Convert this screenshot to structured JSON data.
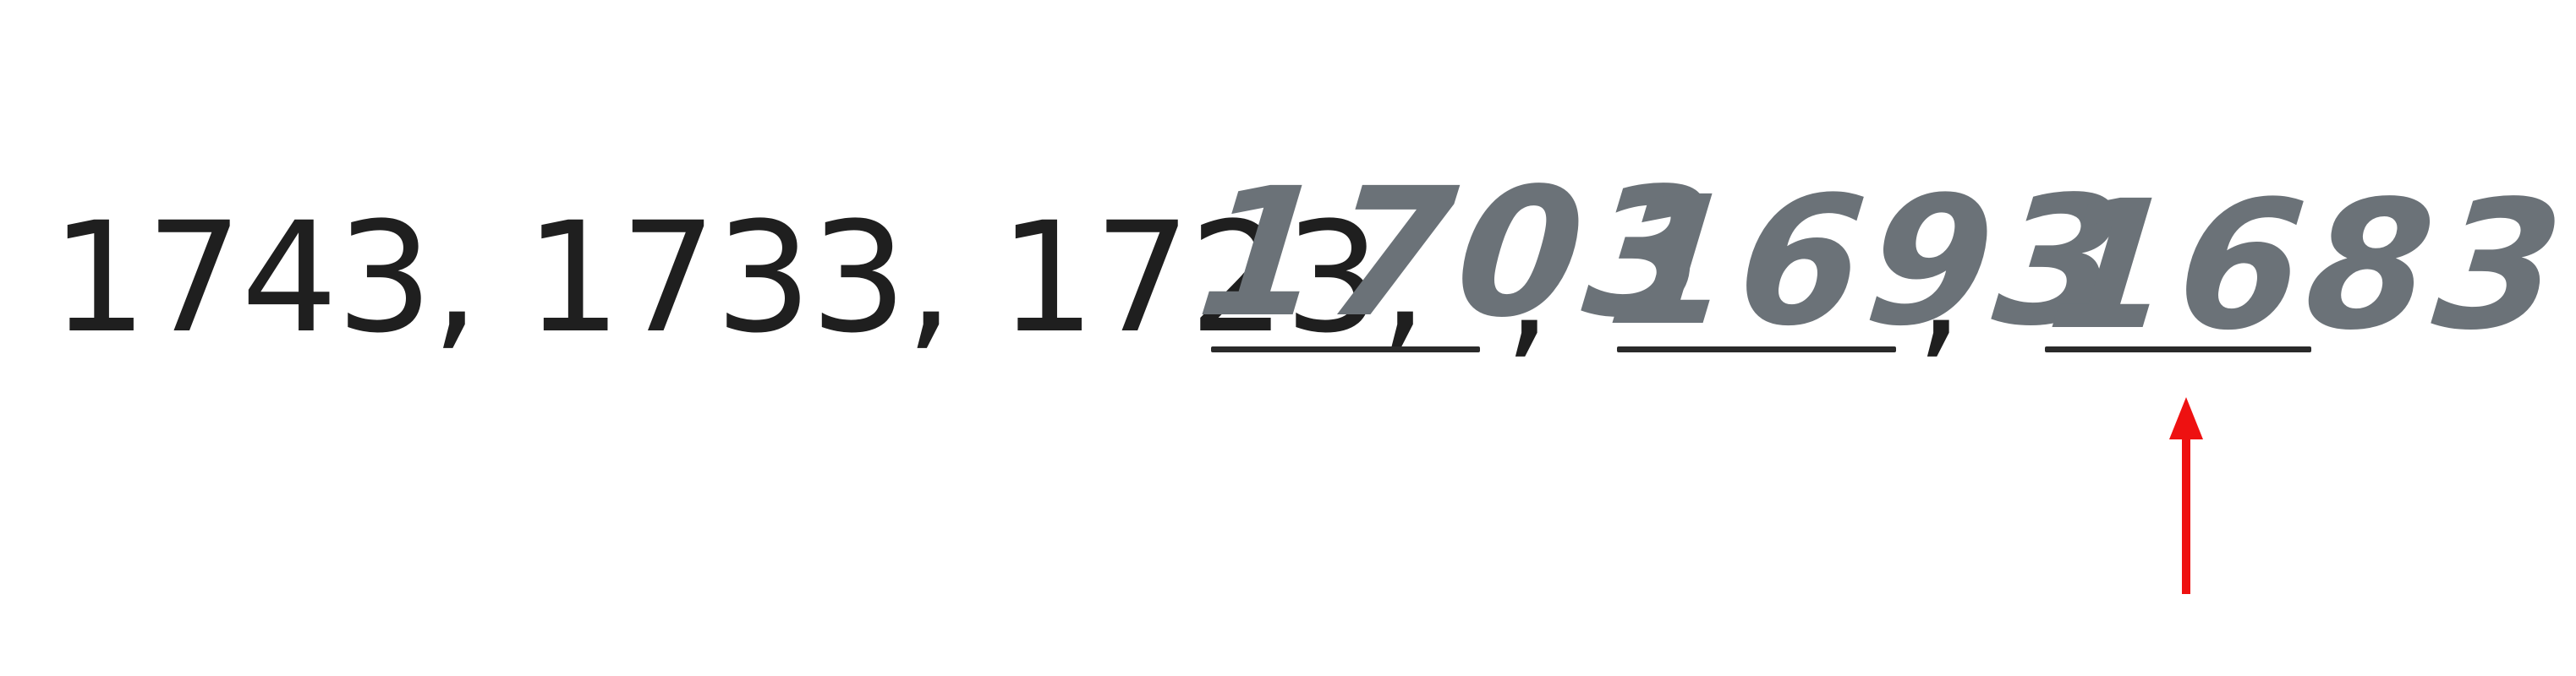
{
  "sequence": {
    "given": [
      "1743",
      "1733",
      "1723"
    ],
    "separator": ",",
    "answers": [
      "1703",
      "1693",
      "1683"
    ]
  },
  "colors": {
    "printed": "#1f1f1f",
    "handwriting": "#6b7278",
    "line": "#2a2a2a",
    "arrow": "#ee1111"
  }
}
